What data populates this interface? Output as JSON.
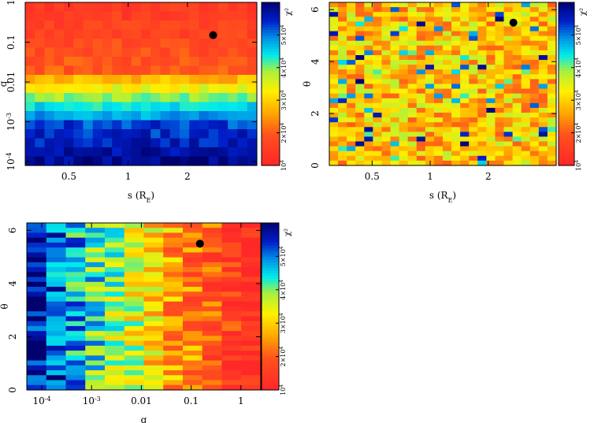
{
  "chart_data": [
    {
      "type": "heatmap",
      "id": "panel-s-q",
      "title": "",
      "xlabel": "s (R_E)",
      "ylabel": "q",
      "x_scale": "log",
      "y_scale": "log",
      "xlim": [
        0.3,
        4.5
      ],
      "ylim": [
        8e-05,
        1.0
      ],
      "xticks": [
        {
          "value": 0.5,
          "label": "0.5"
        },
        {
          "value": 1,
          "label": "1"
        },
        {
          "value": 2,
          "label": "2"
        }
      ],
      "yticks": [
        {
          "value": 0.0001,
          "label": "10^-4"
        },
        {
          "value": 0.001,
          "label": "10^-3"
        },
        {
          "value": 0.01,
          "label": "0.01"
        },
        {
          "value": 0.1,
          "label": "0.1"
        },
        {
          "value": 1,
          "label": "1"
        }
      ],
      "best_fit_marker": {
        "x": 2.7,
        "y": 0.15
      },
      "colorbar_label": "χ²",
      "colorbar_range": [
        10000,
        60000
      ],
      "colorbar_ticks": [
        "10^4",
        "2×10^4",
        "3×10^4",
        "4×10^4",
        "5×10^4"
      ]
    },
    {
      "type": "heatmap",
      "id": "panel-s-theta",
      "title": "",
      "xlabel": "s (R_E)",
      "ylabel": "θ",
      "x_scale": "log",
      "y_scale": "linear",
      "xlim": [
        0.3,
        4.5
      ],
      "ylim": [
        0,
        6.28
      ],
      "xticks": [
        {
          "value": 0.5,
          "label": "0.5"
        },
        {
          "value": 1,
          "label": "1"
        },
        {
          "value": 2,
          "label": "2"
        }
      ],
      "yticks": [
        {
          "value": 0,
          "label": "0"
        },
        {
          "value": 2,
          "label": "2"
        },
        {
          "value": 4,
          "label": "4"
        },
        {
          "value": 6,
          "label": "6"
        }
      ],
      "best_fit_marker": {
        "x": 2.7,
        "y": 5.5
      },
      "colorbar_label": "χ²",
      "colorbar_range": [
        10000,
        60000
      ],
      "colorbar_ticks": [
        "10^4",
        "2×10^4",
        "3×10^4",
        "4×10^4",
        "5×10^4"
      ]
    },
    {
      "type": "heatmap",
      "id": "panel-q-theta",
      "title": "",
      "xlabel": "q",
      "ylabel": "θ",
      "x_scale": "log",
      "y_scale": "linear",
      "xlim": [
        5e-05,
        2.5
      ],
      "ylim": [
        0,
        6.28
      ],
      "xticks": [
        {
          "value": 0.0001,
          "label": "10^-4"
        },
        {
          "value": 0.001,
          "label": "10^-3"
        },
        {
          "value": 0.01,
          "label": "0.01"
        },
        {
          "value": 0.1,
          "label": "0.1"
        },
        {
          "value": 1,
          "label": "1"
        }
      ],
      "yticks": [
        {
          "value": 0,
          "label": "0"
        },
        {
          "value": 2,
          "label": "2"
        },
        {
          "value": 4,
          "label": "4"
        },
        {
          "value": 6,
          "label": "6"
        }
      ],
      "best_fit_marker": {
        "x": 0.15,
        "y": 5.5
      },
      "colorbar_label": "χ²",
      "colorbar_range": [
        10000,
        60000
      ],
      "colorbar_ticks": [
        "10^4",
        "2×10^4",
        "3×10^4",
        "4×10^4",
        "5×10^4"
      ]
    }
  ]
}
